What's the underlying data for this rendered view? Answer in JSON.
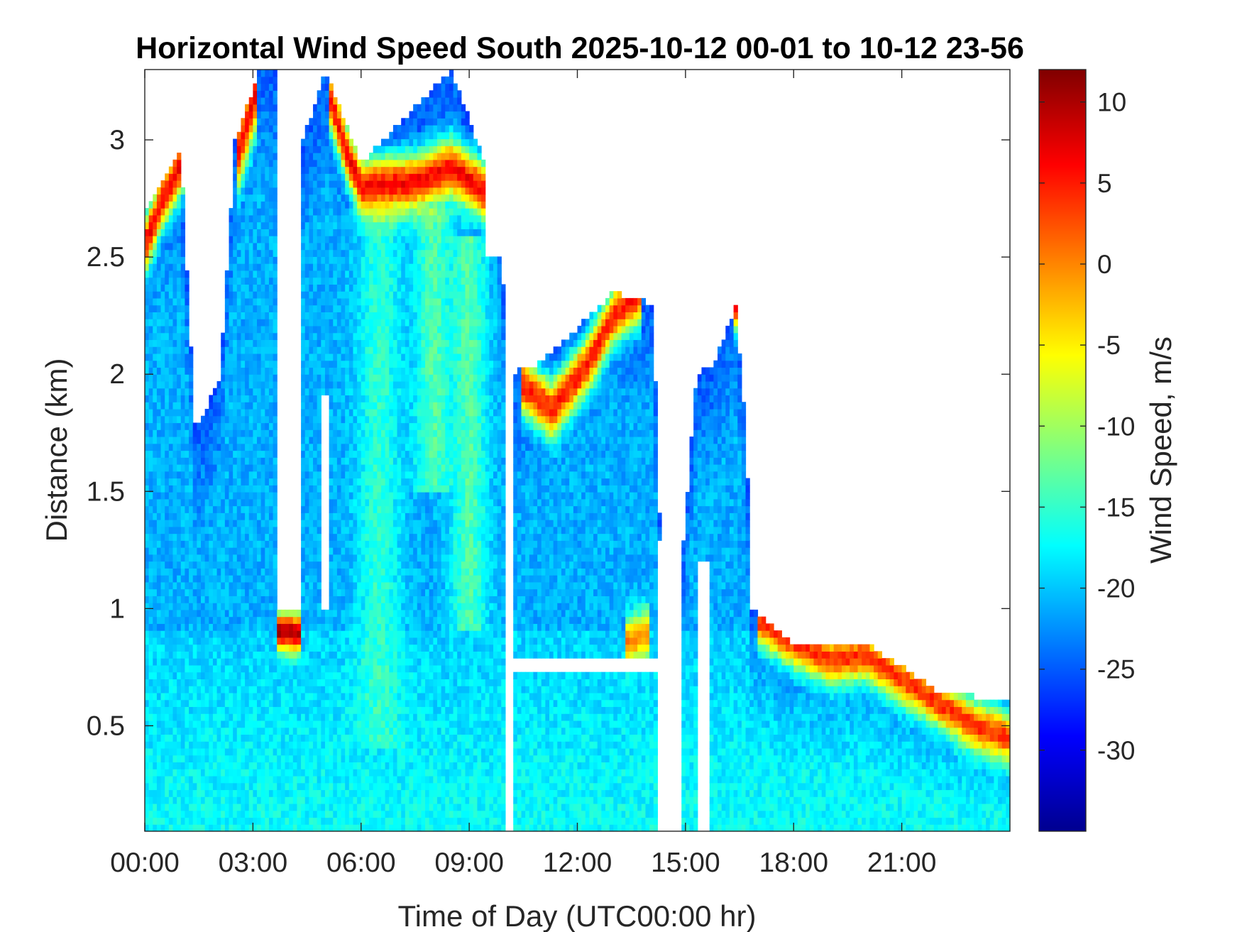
{
  "chart_data": {
    "type": "heatmap",
    "title": "Horizontal Wind Speed South 2025-10-12 00-01 to 10-12 23-56",
    "xlabel": "Time of Day (UTC00:00 hr)",
    "ylabel": "Distance (km)",
    "x_unit": "hours",
    "xlim": [
      0,
      24
    ],
    "ylim": [
      0.05,
      3.3
    ],
    "x_ticks": [
      0,
      3,
      6,
      9,
      12,
      15,
      18,
      21
    ],
    "x_tick_labels": [
      "00:00",
      "03:00",
      "06:00",
      "09:00",
      "12:00",
      "15:00",
      "18:00",
      "21:00"
    ],
    "y_ticks": [
      0.5,
      1,
      1.5,
      2,
      2.5,
      3
    ],
    "y_tick_labels": [
      "0.5",
      "1",
      "1.5",
      "2",
      "2.5",
      "3"
    ],
    "grid": false,
    "colorbar": {
      "label": "Wind Speed, m/s",
      "colormap": "jet",
      "range": [
        -35,
        12
      ],
      "ticks": [
        -30,
        -25,
        -20,
        -15,
        -10,
        -5,
        0,
        5,
        10
      ],
      "tick_labels": [
        "-30",
        "-25",
        "-20",
        "-15",
        "-10",
        "-5",
        "0",
        "5",
        "10"
      ]
    },
    "field": {
      "background": -21,
      "surface_layer": {
        "from_km": 0.05,
        "to_km": 0.9,
        "value": -17
      },
      "gaps": [
        {
          "t0": 3.65,
          "t1": 4.3,
          "d0": 1.0,
          "d1": 3.3
        },
        {
          "t0": 4.9,
          "t1": 5.1,
          "d0": 1.0,
          "d1": 1.9
        },
        {
          "t0": 10.0,
          "t1": 10.2,
          "d0": 0.05,
          "d1": 2.05
        },
        {
          "t0": 10.0,
          "t1": 14.2,
          "d0": 0.72,
          "d1": 0.8
        },
        {
          "t0": 14.2,
          "t1": 14.9,
          "d0": 0.05,
          "d1": 1.3
        },
        {
          "t0": 15.3,
          "t1": 15.7,
          "d0": 0.05,
          "d1": 1.2
        },
        {
          "t0": 9.5,
          "t1": 16.0,
          "d0": 2.5,
          "d1": 3.3
        }
      ],
      "cover_top_km": [
        {
          "t": 0.0,
          "d": 2.7
        },
        {
          "t": 1.0,
          "d": 2.95
        },
        {
          "t": 1.4,
          "d": 1.75
        },
        {
          "t": 2.1,
          "d": 2.0
        },
        {
          "t": 2.5,
          "d": 3.0
        },
        {
          "t": 3.2,
          "d": 3.3
        },
        {
          "t": 3.6,
          "d": 3.3
        },
        {
          "t": 4.4,
          "d": 3.0
        },
        {
          "t": 5.0,
          "d": 3.3
        },
        {
          "t": 6.0,
          "d": 2.9
        },
        {
          "t": 8.5,
          "d": 3.3
        },
        {
          "t": 9.9,
          "d": 2.7
        },
        {
          "t": 10.0,
          "d": 2.0
        },
        {
          "t": 11.0,
          "d": 2.05
        },
        {
          "t": 12.0,
          "d": 2.2
        },
        {
          "t": 13.0,
          "d": 2.35
        },
        {
          "t": 14.1,
          "d": 2.3
        },
        {
          "t": 14.3,
          "d": 1.3
        },
        {
          "t": 14.9,
          "d": 1.2
        },
        {
          "t": 15.3,
          "d": 2.0
        },
        {
          "t": 15.8,
          "d": 2.05
        },
        {
          "t": 16.4,
          "d": 2.3
        },
        {
          "t": 16.7,
          "d": 1.7
        },
        {
          "t": 16.8,
          "d": 1.0
        },
        {
          "t": 18.0,
          "d": 0.85
        },
        {
          "t": 20.0,
          "d": 0.85
        },
        {
          "t": 22.0,
          "d": 0.65
        },
        {
          "t": 24.0,
          "d": 0.6
        }
      ],
      "bands": [
        {
          "points": [
            [
              0.0,
              2.55
            ],
            [
              0.5,
              2.75
            ],
            [
              1.2,
              2.95
            ]
          ],
          "value": 6,
          "width_km": 0.12
        },
        {
          "points": [
            [
              2.6,
              2.95
            ],
            [
              3.1,
              3.2
            ]
          ],
          "value": 6,
          "width_km": 0.15
        },
        {
          "points": [
            [
              5.1,
              3.2
            ],
            [
              5.6,
              2.95
            ],
            [
              6.0,
              2.8
            ],
            [
              7.5,
              2.82
            ],
            [
              8.5,
              2.88
            ],
            [
              9.3,
              2.8
            ],
            [
              9.8,
              2.7
            ]
          ],
          "value": 6,
          "width_km": 0.12
        },
        {
          "points": [
            [
              3.7,
              0.9
            ],
            [
              4.3,
              0.9
            ]
          ],
          "value": 10,
          "width_km": 0.08
        },
        {
          "points": [
            [
              10.5,
              1.95
            ],
            [
              11.3,
              1.85
            ],
            [
              12.3,
              2.05
            ],
            [
              13.0,
              2.25
            ],
            [
              13.8,
              2.35
            ]
          ],
          "value": 5,
          "width_km": 0.12
        },
        {
          "points": [
            [
              16.3,
              2.35
            ],
            [
              16.7,
              2.1
            ]
          ],
          "value": 6,
          "width_km": 0.1
        },
        {
          "points": [
            [
              17.0,
              0.95
            ],
            [
              18.0,
              0.85
            ],
            [
              19.0,
              0.78
            ],
            [
              20.0,
              0.8
            ],
            [
              21.0,
              0.7
            ],
            [
              22.0,
              0.6
            ],
            [
              23.0,
              0.5
            ],
            [
              24.0,
              0.45
            ]
          ],
          "value": 4,
          "width_km": 0.1
        },
        {
          "points": [
            [
              13.3,
              0.85
            ],
            [
              14.0,
              0.9
            ]
          ],
          "value": 0,
          "width_km": 0.1
        }
      ],
      "plumes": [
        {
          "t": 6.5,
          "d0": 0.4,
          "d1": 2.7,
          "value": -14,
          "width_h": 0.6
        },
        {
          "t": 9.0,
          "d0": 0.9,
          "d1": 2.6,
          "value": -12,
          "width_h": 0.5
        },
        {
          "t": 8.0,
          "d0": 1.5,
          "d1": 2.7,
          "value": -12,
          "width_h": 0.5
        }
      ]
    }
  }
}
